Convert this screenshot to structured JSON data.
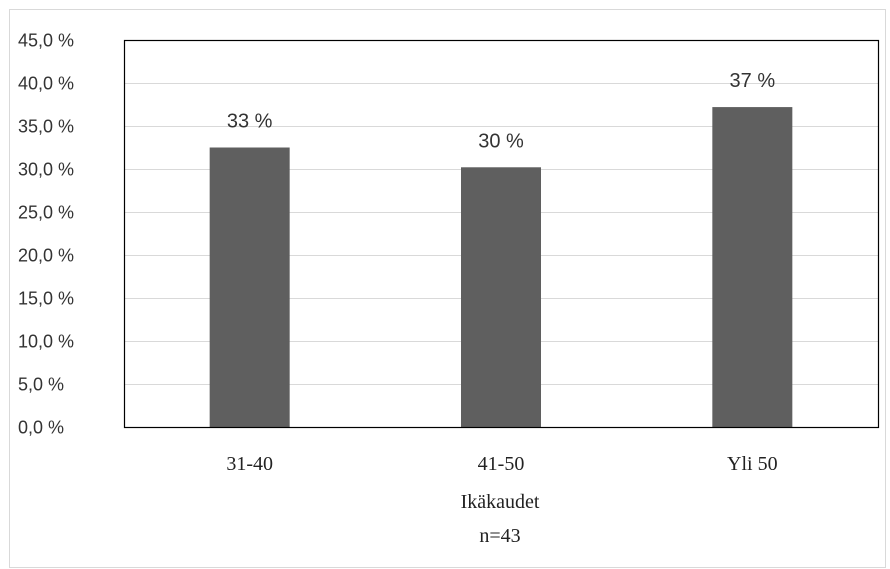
{
  "chart_data": {
    "type": "bar",
    "categories": [
      "31-40",
      "41-50",
      "Yli 50"
    ],
    "values": [
      32.5,
      30.2,
      37.2
    ],
    "data_labels": [
      "33 %",
      "30 %",
      "37 %"
    ],
    "title": "",
    "xlabel": "Ikäkaudet",
    "xsublabel": "n=43",
    "ylabel": "",
    "ylim": [
      0,
      45
    ],
    "yticks": [
      0,
      5,
      10,
      15,
      20,
      25,
      30,
      35,
      40,
      45
    ],
    "ytick_labels": [
      "0,0 %",
      "5,0 %",
      "10,0 %",
      "15,0 %",
      "20,0 %",
      "25,0 %",
      "30,0 %",
      "35,0 %",
      "40,0 %",
      "45,0 %"
    ],
    "grid": true,
    "legend": "none",
    "bar_color": "#5f5f5f",
    "grid_color": "#d9d9d9",
    "axis_color": "#000000"
  }
}
